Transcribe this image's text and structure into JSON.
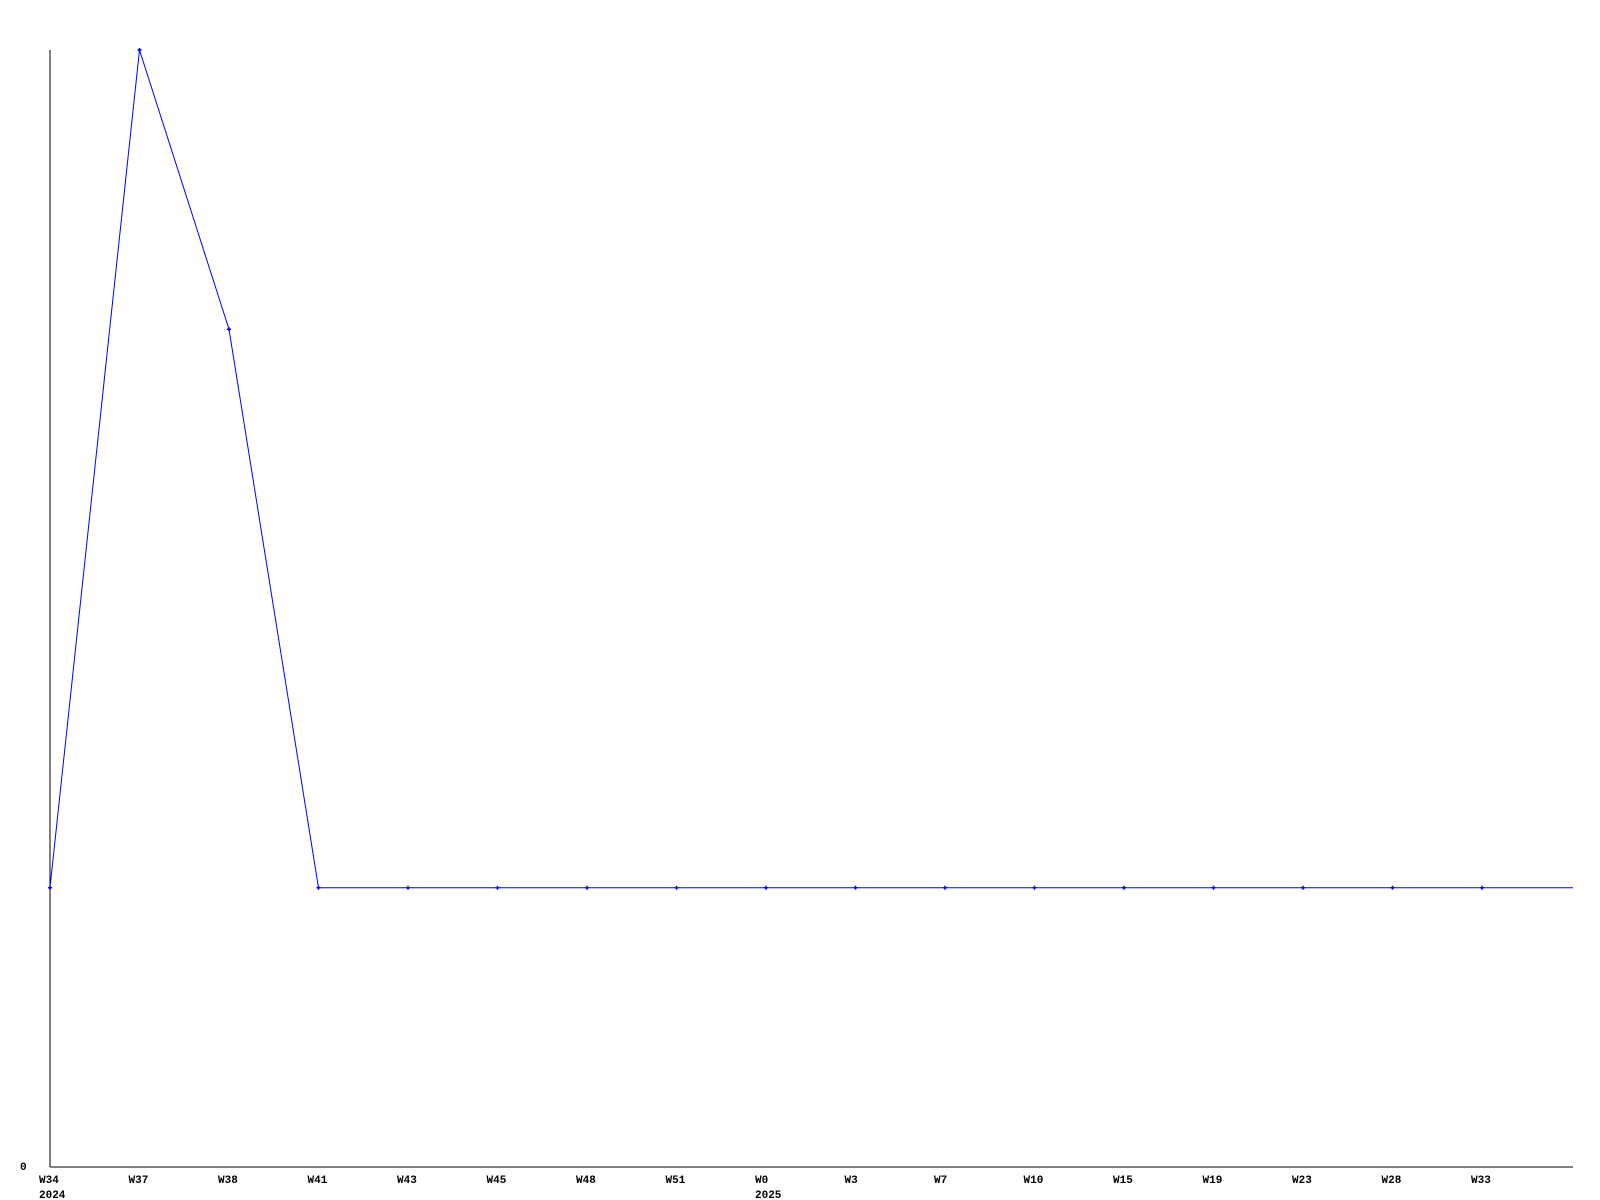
{
  "chart_data": {
    "type": "line",
    "x": [
      "W34",
      "W37",
      "W38",
      "W41",
      "W43",
      "W45",
      "W48",
      "W51",
      "W0",
      "W3",
      "W7",
      "W10",
      "W15",
      "W19",
      "W23",
      "W28",
      "W33"
    ],
    "year_labels": [
      {
        "at": "W34",
        "label": "2024"
      },
      {
        "at": "W0",
        "label": "2025"
      }
    ],
    "series": [
      {
        "values": [
          1,
          4,
          3,
          1,
          1,
          1,
          1,
          1,
          1,
          1,
          1,
          1,
          1,
          1,
          1,
          1,
          1
        ],
        "color": "#0000ff"
      }
    ],
    "y_tick_labels": [
      "0"
    ],
    "ylim": [
      0,
      4
    ],
    "grid": false
  }
}
